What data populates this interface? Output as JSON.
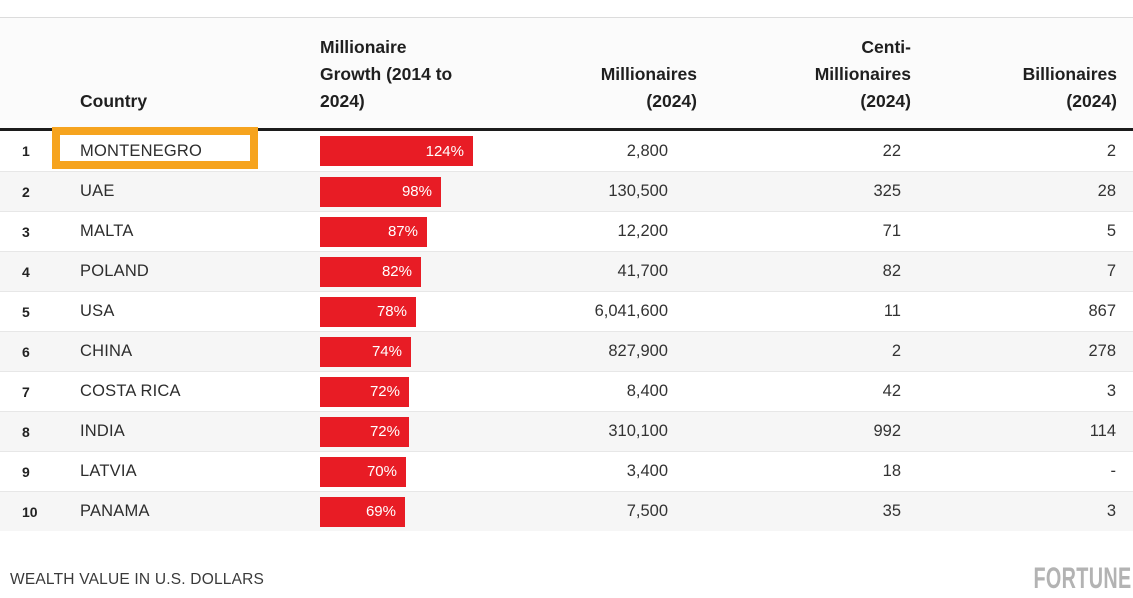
{
  "table": {
    "headers": {
      "country": "Country",
      "growth": "Millionaire Growth (2014 to 2024)",
      "millionaires": "Millionaires (2024)",
      "centi_millionaires": "Centi-Millionaires (2024)",
      "billionaires": "Billionaires (2024)"
    },
    "rows": [
      {
        "rank": "1",
        "country": "MONTENEGRO",
        "growth_pct": 124,
        "growth_label": "124%",
        "millionaires": "2,800",
        "centi_millionaires": "22",
        "billionaires": "2",
        "highlighted": true
      },
      {
        "rank": "2",
        "country": "UAE",
        "growth_pct": 98,
        "growth_label": "98%",
        "millionaires": "130,500",
        "centi_millionaires": "325",
        "billionaires": "28",
        "highlighted": false
      },
      {
        "rank": "3",
        "country": "MALTA",
        "growth_pct": 87,
        "growth_label": "87%",
        "millionaires": "12,200",
        "centi_millionaires": "71",
        "billionaires": "5",
        "highlighted": false
      },
      {
        "rank": "4",
        "country": "POLAND",
        "growth_pct": 82,
        "growth_label": "82%",
        "millionaires": "41,700",
        "centi_millionaires": "82",
        "billionaires": "7",
        "highlighted": false
      },
      {
        "rank": "5",
        "country": "USA",
        "growth_pct": 78,
        "growth_label": "78%",
        "millionaires": "6,041,600",
        "centi_millionaires": "11",
        "billionaires": "867",
        "highlighted": false
      },
      {
        "rank": "6",
        "country": "CHINA",
        "growth_pct": 74,
        "growth_label": "74%",
        "millionaires": "827,900",
        "centi_millionaires": "2",
        "billionaires": "278",
        "highlighted": false
      },
      {
        "rank": "7",
        "country": "COSTA RICA",
        "growth_pct": 72,
        "growth_label": "72%",
        "millionaires": "8,400",
        "centi_millionaires": "42",
        "billionaires": "3",
        "highlighted": false
      },
      {
        "rank": "8",
        "country": "INDIA",
        "growth_pct": 72,
        "growth_label": "72%",
        "millionaires": "310,100",
        "centi_millionaires": "992",
        "billionaires": "114",
        "highlighted": false
      },
      {
        "rank": "9",
        "country": "LATVIA",
        "growth_pct": 70,
        "growth_label": "70%",
        "millionaires": "3,400",
        "centi_millionaires": "18",
        "billionaires": "-",
        "highlighted": false
      },
      {
        "rank": "10",
        "country": "PANAMA",
        "growth_pct": 69,
        "growth_label": "69%",
        "millionaires": "7,500",
        "centi_millionaires": "35",
        "billionaires": "3",
        "highlighted": false
      }
    ]
  },
  "annotations": {
    "highlighted_country": "MONTENEGRO"
  },
  "footer": {
    "note": "WEALTH VALUE IN U.S. DOLLARS",
    "brand": "FORTUNE"
  },
  "colors": {
    "bar_red": "#e81c25",
    "highlight_orange": "#f6a41f",
    "header_rule": "#1c1c1c",
    "row_alt_bg": "#f6f6f6",
    "logo_gray": "#b3b3b3"
  },
  "chart_data": {
    "type": "table",
    "columns": [
      "Country",
      "Millionaire Growth (2014 to 2024)",
      "Millionaires (2024)",
      "Centi-Millionaires (2024)",
      "Billionaires (2024)"
    ],
    "bar_column": "Millionaire Growth (2014 to 2024)",
    "bar_unit": "%",
    "categories": [
      "MONTENEGRO",
      "UAE",
      "MALTA",
      "POLAND",
      "USA",
      "CHINA",
      "COSTA RICA",
      "INDIA",
      "LATVIA",
      "PANAMA"
    ],
    "bar_values": [
      124,
      98,
      87,
      82,
      78,
      74,
      72,
      72,
      70,
      69
    ],
    "rows": [
      [
        1,
        "MONTENEGRO",
        124,
        2800,
        22,
        2
      ],
      [
        2,
        "UAE",
        98,
        130500,
        325,
        28
      ],
      [
        3,
        "MALTA",
        87,
        12200,
        71,
        5
      ],
      [
        4,
        "POLAND",
        82,
        41700,
        82,
        7
      ],
      [
        5,
        "USA",
        78,
        6041600,
        11,
        867
      ],
      [
        6,
        "CHINA",
        74,
        827900,
        2,
        278
      ],
      [
        7,
        "COSTA RICA",
        72,
        8400,
        42,
        3
      ],
      [
        8,
        "INDIA",
        72,
        310100,
        992,
        114
      ],
      [
        9,
        "LATVIA",
        70,
        3400,
        18,
        null
      ],
      [
        10,
        "PANAMA",
        69,
        7500,
        35,
        3
      ]
    ],
    "note": "WEALTH VALUE IN U.S. DOLLARS",
    "source_brand": "FORTUNE",
    "legend": false,
    "grid": false
  }
}
